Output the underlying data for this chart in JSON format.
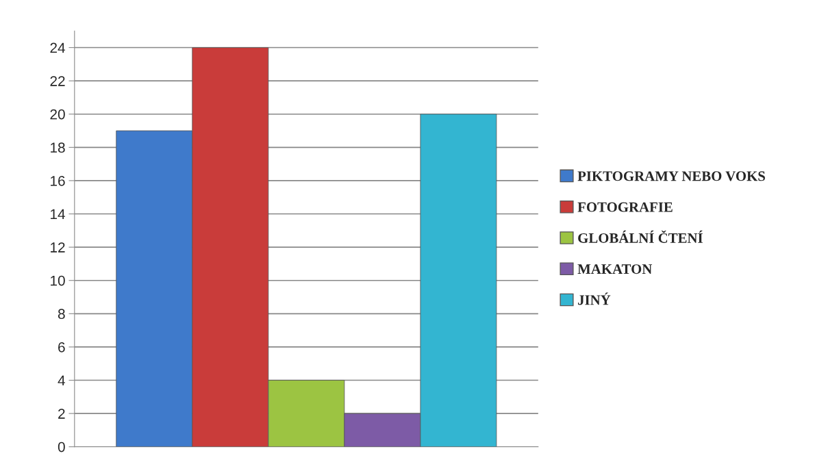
{
  "chart_data": {
    "type": "bar",
    "categories": [
      null
    ],
    "series": [
      {
        "name": "PIKTOGRAMY NEBO VOKS",
        "color": "#3f7acb",
        "values": [
          19
        ]
      },
      {
        "name": "FOTOGRAFIE",
        "color": "#c93c3a",
        "values": [
          24
        ]
      },
      {
        "name": "GLOBÁLNÍ ČTENÍ",
        "color": "#9cc442",
        "values": [
          4
        ]
      },
      {
        "name": "MAKATON",
        "color": "#7d5ba6",
        "values": [
          2
        ]
      },
      {
        "name": "JINÝ",
        "color": "#33b5d1",
        "values": [
          20
        ]
      }
    ],
    "ylim": [
      0,
      25
    ],
    "yticks": [
      0,
      2,
      4,
      6,
      8,
      10,
      12,
      14,
      16,
      18,
      20,
      22,
      24
    ],
    "grid": "y",
    "legend": "right"
  }
}
